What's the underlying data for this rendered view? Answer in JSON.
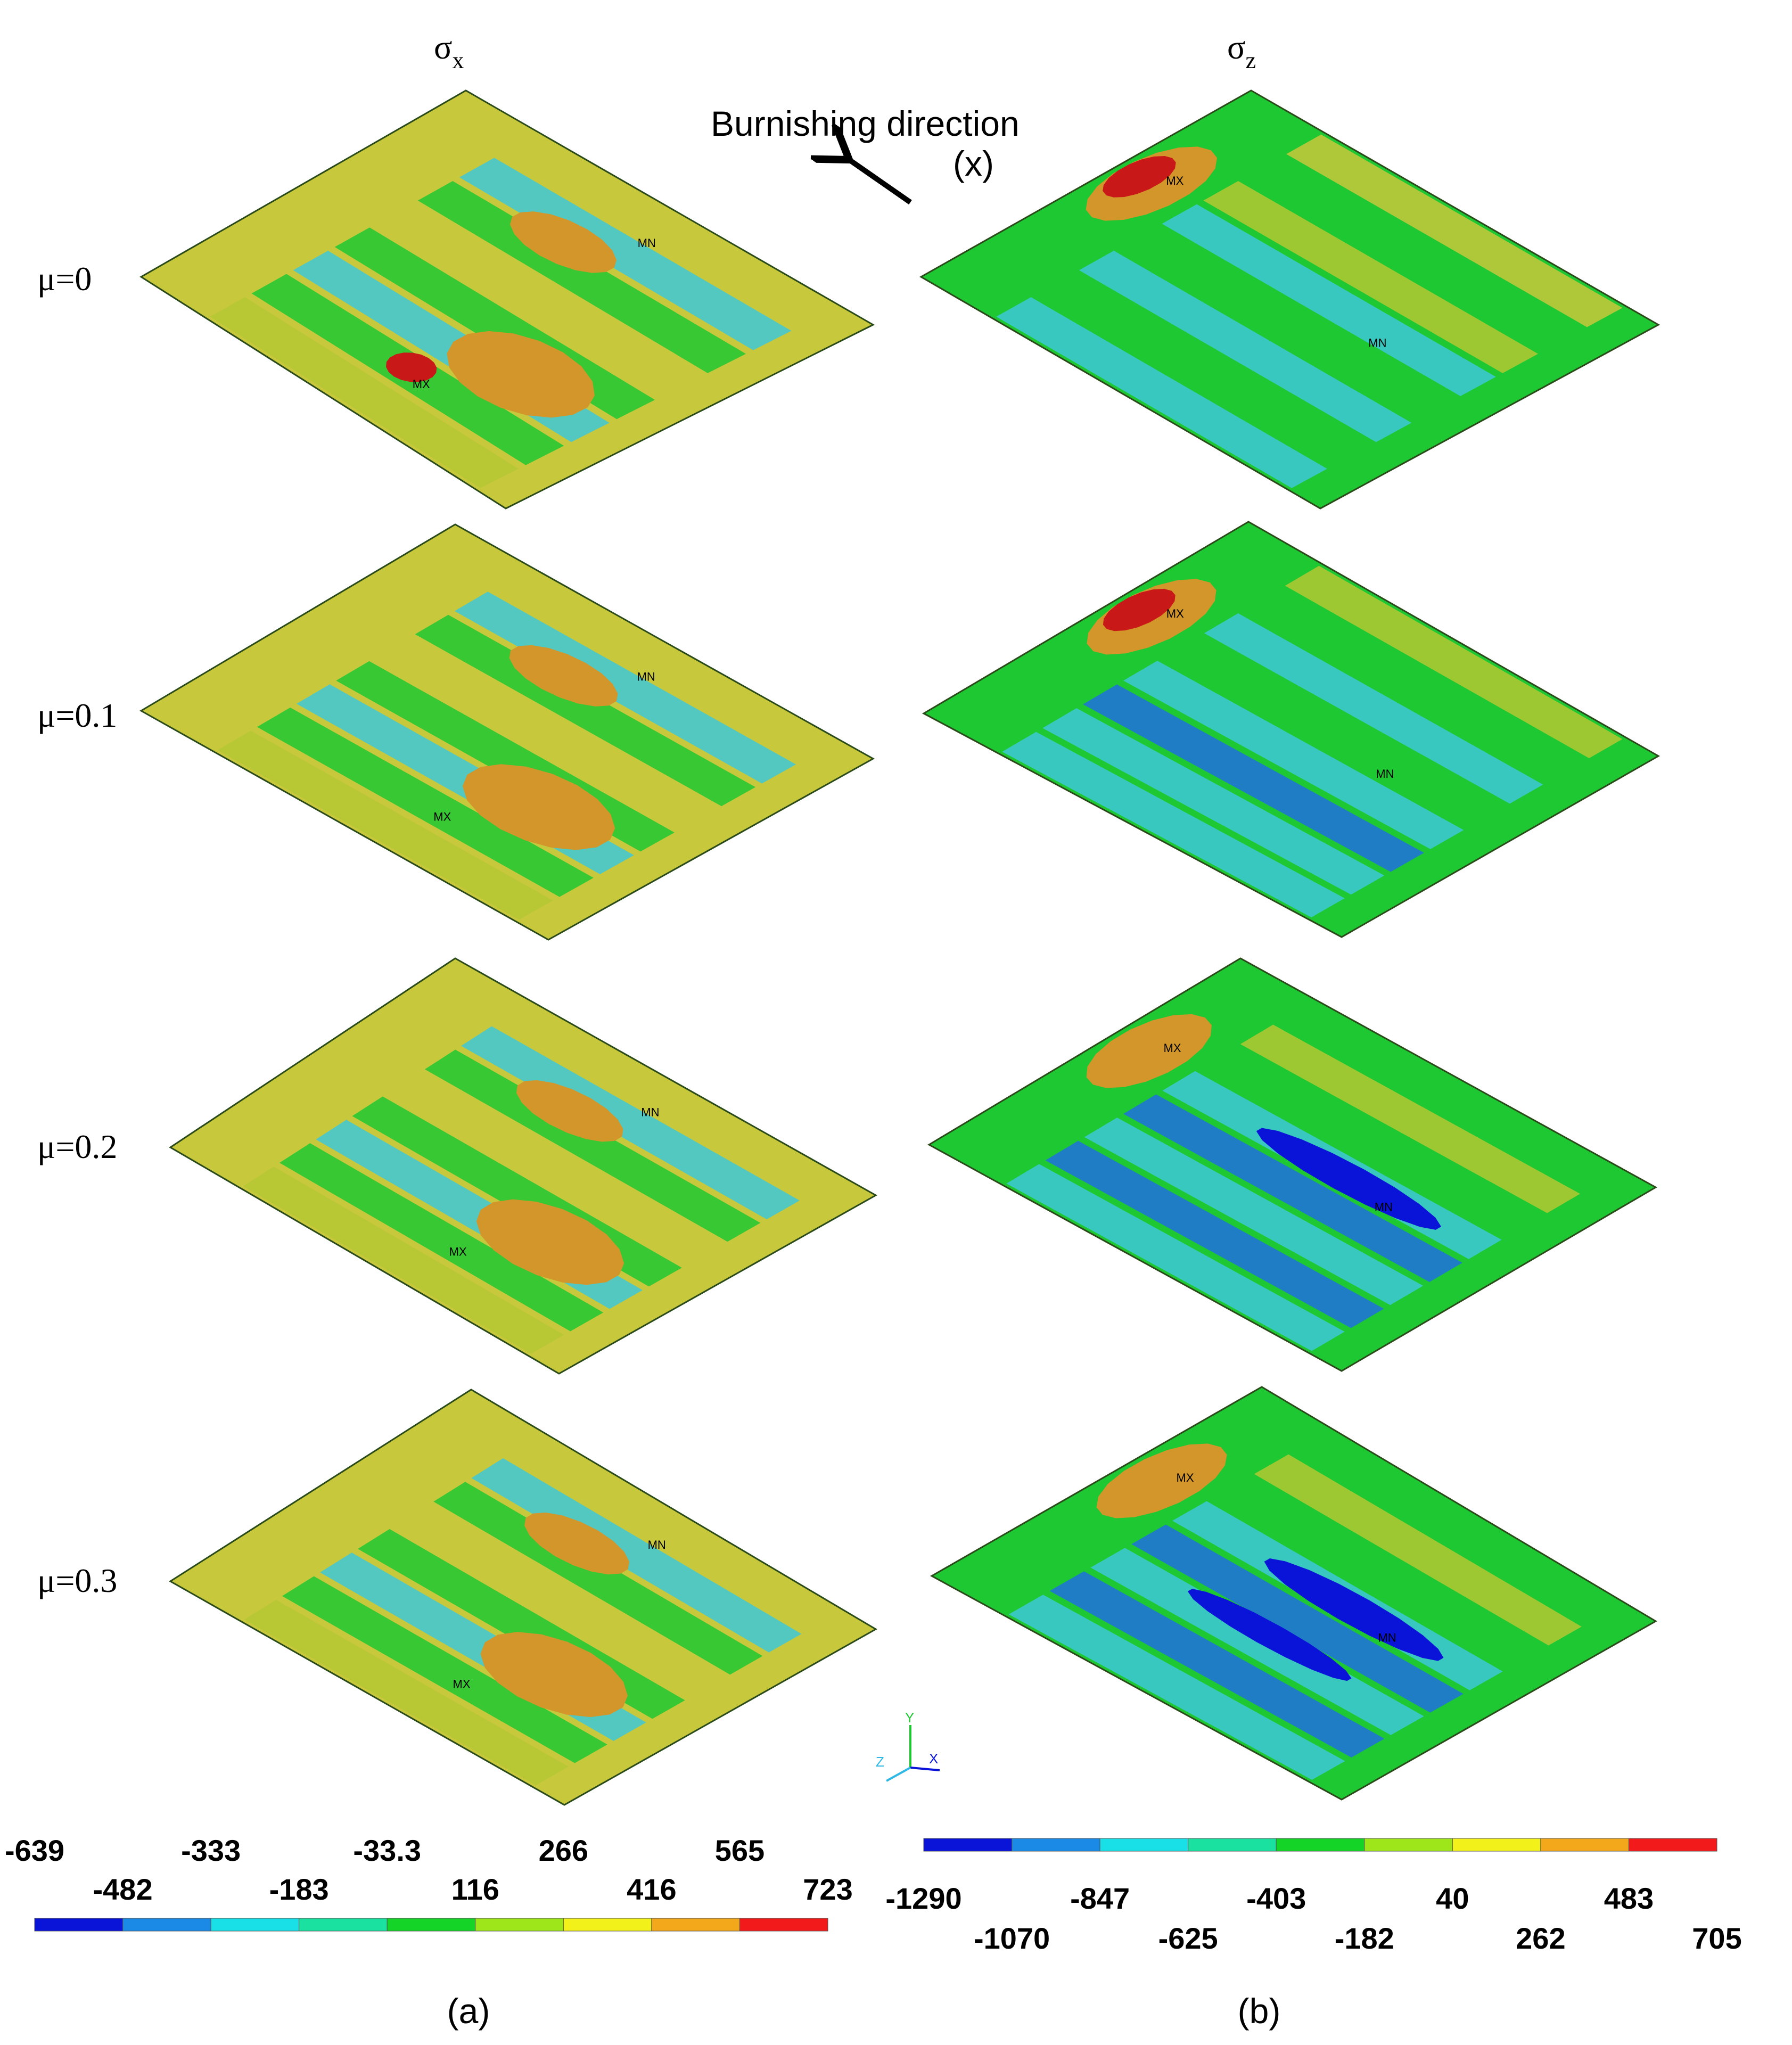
{
  "columns": {
    "left": {
      "symbol": "σ",
      "subscript": "x"
    },
    "right": {
      "symbol": "σ",
      "subscript": "z"
    }
  },
  "direction": {
    "label": "Burnishing direction",
    "axis": "(x)"
  },
  "rows": [
    {
      "label": "μ=0"
    },
    {
      "label": "μ=0.1"
    },
    {
      "label": "μ=0.2"
    },
    {
      "label": "μ=0.3"
    }
  ],
  "markers": {
    "max": "MX",
    "min": "MN"
  },
  "triad": {
    "y": "Y",
    "z": "Z",
    "x": "X"
  },
  "legend_a": {
    "colors": [
      "#0a14d8",
      "#1a8ae6",
      "#19e0e6",
      "#1ae0a0",
      "#14d428",
      "#9ee61a",
      "#f2f21a",
      "#f2a81a",
      "#f21a1a"
    ],
    "ticks": [
      "-639",
      "-482",
      "-333",
      "-183",
      "-33.3",
      "116",
      "266",
      "416",
      "565",
      "723"
    ]
  },
  "legend_b": {
    "colors": [
      "#0a14d8",
      "#1a8ae6",
      "#19e0e6",
      "#1ae0a0",
      "#14d428",
      "#9ee61a",
      "#f2f21a",
      "#f2a81a",
      "#f21a1a"
    ],
    "ticks": [
      "-1290",
      "-1070",
      "-847",
      "-625",
      "-403",
      "-182",
      "40",
      "262",
      "483",
      "705"
    ]
  },
  "captions": {
    "a": "(a)",
    "b": "(b)"
  },
  "palette": {
    "dark_blue": "#0a14d8",
    "blue": "#2070e0",
    "cyan": "#3ec8d8",
    "green": "#1ec832",
    "yellow_green": "#b4c832",
    "olive": "#c8c83c",
    "orange": "#d2962a",
    "red": "#c81818"
  }
}
